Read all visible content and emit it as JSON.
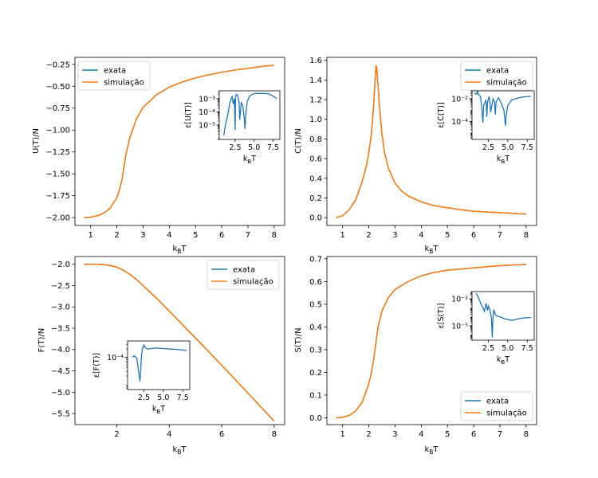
{
  "colors": {
    "exata": "#1f77b4",
    "simulacao": "#ff7f0e"
  },
  "chart_data": [
    {
      "type": "line",
      "id": "U",
      "ylabel": "U(T)/N",
      "xlabel": "k_BT",
      "xlim": [
        0.4,
        8.4
      ],
      "ylim": [
        -2.09,
        -0.17
      ],
      "xticks": [
        1,
        2,
        3,
        4,
        5,
        6,
        7,
        8
      ],
      "yticks": [
        -2.0,
        -1.75,
        -1.5,
        -1.25,
        -1.0,
        -0.75,
        -0.5,
        -0.25
      ],
      "ytick_labels": [
        "−2.00",
        "−1.75",
        "−1.50",
        "−1.25",
        "−1.00",
        "−0.75",
        "−0.50",
        "−0.25"
      ],
      "legend": {
        "position": "upper-left",
        "labels": [
          "exata",
          "simulação"
        ]
      },
      "series": [
        {
          "name": "exata",
          "x": [
            0.75,
            1.0,
            1.25,
            1.5,
            1.75,
            2.0,
            2.1,
            2.2,
            2.27,
            2.35,
            2.5,
            2.75,
            3.0,
            3.5,
            4.0,
            4.5,
            5.0,
            5.5,
            6.0,
            6.5,
            7.0,
            7.5,
            8.0
          ],
          "y": [
            -2.0,
            -1.995,
            -1.98,
            -1.95,
            -1.89,
            -1.77,
            -1.68,
            -1.56,
            -1.42,
            -1.27,
            -1.08,
            -0.87,
            -0.74,
            -0.6,
            -0.51,
            -0.45,
            -0.405,
            -0.37,
            -0.34,
            -0.315,
            -0.295,
            -0.275,
            -0.26
          ]
        },
        {
          "name": "simulação",
          "x": [
            0.75,
            1.0,
            1.25,
            1.5,
            1.75,
            2.0,
            2.1,
            2.2,
            2.27,
            2.35,
            2.5,
            2.75,
            3.0,
            3.5,
            4.0,
            4.5,
            5.0,
            5.5,
            6.0,
            6.5,
            7.0,
            7.5,
            8.0
          ],
          "y": [
            -2.0,
            -1.995,
            -1.98,
            -1.95,
            -1.89,
            -1.77,
            -1.68,
            -1.56,
            -1.42,
            -1.27,
            -1.08,
            -0.87,
            -0.74,
            -0.6,
            -0.51,
            -0.45,
            -0.405,
            -0.37,
            -0.34,
            -0.315,
            -0.295,
            -0.275,
            -0.26
          ]
        }
      ],
      "inset": {
        "ylabel": "ε[U(T)]",
        "xlabel": "k_BT",
        "xlim": [
          0.4,
          8.4
        ],
        "ylog": [
          -6.1,
          -2.4
        ],
        "xticks": [
          2.5,
          5.0,
          7.5
        ],
        "xtick_labels": [
          "2.5",
          "5.0",
          "7.5"
        ],
        "yticks": [
          -5,
          -4,
          -3
        ],
        "ytick_labels": [
          "10⁻⁵",
          "10⁻⁴",
          "10⁻³"
        ],
        "series": [
          {
            "name": "exata",
            "x": [
              1.0,
              1.2,
              1.5,
              1.8,
              2.1,
              2.25,
              2.4,
              2.5,
              2.55,
              2.6,
              2.8,
              3.0,
              3.1,
              3.3,
              3.5,
              3.7,
              3.8,
              3.9,
              4.1,
              4.4,
              4.8,
              5.3,
              6.0,
              6.5,
              7.0,
              7.5,
              8.0
            ],
            "log10": [
              -5.8,
              -5.0,
              -4.3,
              -3.3,
              -2.8,
              -3.4,
              -3.0,
              -5.4,
              -2.9,
              -2.7,
              -2.7,
              -3.2,
              -4.6,
              -3.3,
              -3.5,
              -4.5,
              -5.3,
              -4.2,
              -3.2,
              -2.8,
              -2.65,
              -2.6,
              -2.6,
              -2.6,
              -2.65,
              -2.8,
              -3.0
            ]
          }
        ]
      }
    },
    {
      "type": "line",
      "id": "C",
      "ylabel": "C(T)/N",
      "xlabel": "k_BT",
      "xlim": [
        0.4,
        8.4
      ],
      "ylim": [
        -0.08,
        1.63
      ],
      "xticks": [
        1,
        2,
        3,
        4,
        5,
        6,
        7,
        8
      ],
      "yticks": [
        0.0,
        0.2,
        0.4,
        0.6,
        0.8,
        1.0,
        1.2,
        1.4,
        1.6
      ],
      "ytick_labels": [
        "0.0",
        "0.2",
        "0.4",
        "0.6",
        "0.8",
        "1.0",
        "1.2",
        "1.4",
        "1.6"
      ],
      "legend": {
        "position": "upper-right",
        "labels": [
          "exata",
          "simulação"
        ]
      },
      "series": [
        {
          "name": "exata",
          "x": [
            0.75,
            1.0,
            1.25,
            1.5,
            1.75,
            1.9,
            2.0,
            2.1,
            2.15,
            2.2,
            2.25,
            2.27,
            2.3,
            2.35,
            2.4,
            2.5,
            2.6,
            2.75,
            3.0,
            3.25,
            3.5,
            4.0,
            4.5,
            5.0,
            5.5,
            6.0,
            7.0,
            8.0
          ],
          "y": [
            0.0,
            0.02,
            0.08,
            0.18,
            0.37,
            0.52,
            0.66,
            0.86,
            1.02,
            1.22,
            1.45,
            1.55,
            1.52,
            1.35,
            1.15,
            0.85,
            0.66,
            0.5,
            0.35,
            0.27,
            0.22,
            0.16,
            0.12,
            0.1,
            0.08,
            0.065,
            0.05,
            0.035
          ]
        },
        {
          "name": "simulação",
          "x": [
            0.75,
            1.0,
            1.25,
            1.5,
            1.75,
            1.9,
            2.0,
            2.1,
            2.15,
            2.2,
            2.25,
            2.27,
            2.3,
            2.35,
            2.4,
            2.5,
            2.6,
            2.75,
            3.0,
            3.25,
            3.5,
            4.0,
            4.5,
            5.0,
            5.5,
            6.0,
            7.0,
            8.0
          ],
          "y": [
            0.0,
            0.02,
            0.08,
            0.18,
            0.37,
            0.52,
            0.66,
            0.86,
            1.02,
            1.22,
            1.45,
            1.55,
            1.52,
            1.35,
            1.15,
            0.85,
            0.66,
            0.5,
            0.35,
            0.27,
            0.22,
            0.16,
            0.12,
            0.1,
            0.08,
            0.065,
            0.05,
            0.035
          ]
        }
      ],
      "inset": {
        "ylabel": "ε[C(T)]",
        "xlabel": "k_BT",
        "xlim": [
          0.4,
          8.4
        ],
        "ylog": [
          -5.6,
          -1.3
        ],
        "xticks": [
          2.5,
          5.0,
          7.5
        ],
        "xtick_labels": [
          "2.5",
          "5.0",
          "7.5"
        ],
        "yticks": [
          -4,
          -2
        ],
        "ytick_labels": [
          "10⁻⁴",
          "10⁻²"
        ],
        "series": [
          {
            "name": "exata",
            "x": [
              0.7,
              1.0,
              1.1,
              1.2,
              1.5,
              1.7,
              1.8,
              1.9,
              2.2,
              2.3,
              2.4,
              2.6,
              2.7,
              2.8,
              3.1,
              3.3,
              3.4,
              3.5,
              3.8,
              4.1,
              4.5,
              4.7,
              4.8,
              5.0,
              5.5,
              6.0,
              6.5,
              7.0,
              7.5,
              8.0
            ],
            "log10": [
              -1.5,
              -1.6,
              -1.3,
              -1.6,
              -1.8,
              -3.2,
              -4.1,
              -2.6,
              -2.1,
              -3.6,
              -2.3,
              -1.8,
              -2.3,
              -3.2,
              -2.0,
              -2.3,
              -3.4,
              -2.3,
              -1.9,
              -2.3,
              -3.0,
              -4.4,
              -3.5,
              -2.6,
              -2.1,
              -2.0,
              -1.9,
              -1.85,
              -1.8,
              -1.8
            ]
          }
        ]
      }
    },
    {
      "type": "line",
      "id": "F",
      "ylabel": "F(T)/N",
      "xlabel": "k_BT",
      "xlim": [
        0.4,
        8.4
      ],
      "ylim": [
        -5.76,
        -1.82
      ],
      "xticks": [
        2,
        4,
        6,
        8
      ],
      "yticks": [
        -5.5,
        -5.0,
        -4.5,
        -4.0,
        -3.5,
        -3.0,
        -2.5,
        -2.0
      ],
      "ytick_labels": [
        "−5.5",
        "−5.0",
        "−4.5",
        "−4.0",
        "−3.5",
        "−3.0",
        "−2.5",
        "−2.0"
      ],
      "legend": {
        "position": "upper-right",
        "labels": [
          "exata",
          "simulação"
        ]
      },
      "series": [
        {
          "name": "exata",
          "x": [
            0.75,
            1.0,
            1.25,
            1.5,
            1.75,
            2.0,
            2.25,
            2.5,
            2.75,
            3.0,
            3.5,
            4.0,
            5.0,
            6.0,
            7.0,
            8.0
          ],
          "y": [
            -2.0,
            -2.0,
            -2.002,
            -2.01,
            -2.03,
            -2.07,
            -2.14,
            -2.24,
            -2.36,
            -2.5,
            -2.79,
            -3.1,
            -3.73,
            -4.37,
            -5.02,
            -5.68
          ]
        },
        {
          "name": "simulação",
          "x": [
            0.75,
            1.0,
            1.25,
            1.5,
            1.75,
            2.0,
            2.25,
            2.5,
            2.75,
            3.0,
            3.5,
            4.0,
            5.0,
            6.0,
            7.0,
            8.0
          ],
          "y": [
            -2.0,
            -2.0,
            -2.002,
            -2.01,
            -2.03,
            -2.07,
            -2.14,
            -2.24,
            -2.36,
            -2.5,
            -2.79,
            -3.1,
            -3.73,
            -4.37,
            -5.02,
            -5.68
          ]
        }
      ],
      "inset": {
        "ylabel": "ε[F(T)]",
        "xlabel": "k_BT",
        "xlim": [
          0.4,
          8.4
        ],
        "ylog": [
          -5.2,
          -3.4
        ],
        "xticks": [
          2.5,
          5.0,
          7.5
        ],
        "xtick_labels": [
          "2.5",
          "5.0",
          "7.5"
        ],
        "yticks": [
          -4
        ],
        "ytick_labels": [
          "10⁻⁴"
        ],
        "series": [
          {
            "name": "exata",
            "x": [
              1.0,
              1.3,
              1.6,
              1.8,
              2.0,
              2.1,
              2.2,
              2.3,
              2.5,
              2.7,
              3.0,
              3.5,
              4.0,
              5.0,
              6.0,
              7.0,
              8.0
            ],
            "log10": [
              -4.0,
              -3.95,
              -4.05,
              -4.5,
              -4.9,
              -4.4,
              -3.9,
              -3.7,
              -3.55,
              -3.65,
              -3.7,
              -3.68,
              -3.66,
              -3.68,
              -3.7,
              -3.72,
              -3.75
            ]
          }
        ]
      }
    },
    {
      "type": "line",
      "id": "S",
      "ylabel": "S(T)/N",
      "xlabel": "k_BT",
      "xlim": [
        0.4,
        8.4
      ],
      "ylim": [
        -0.03,
        0.71
      ],
      "xticks": [
        1,
        2,
        3,
        4,
        5,
        6,
        7,
        8
      ],
      "yticks": [
        0.0,
        0.1,
        0.2,
        0.3,
        0.4,
        0.5,
        0.6,
        0.7
      ],
      "ytick_labels": [
        "0.0",
        "0.1",
        "0.2",
        "0.3",
        "0.4",
        "0.5",
        "0.6",
        "0.7"
      ],
      "legend": {
        "position": "lower-right",
        "labels": [
          "exata",
          "simulação"
        ]
      },
      "series": [
        {
          "name": "exata",
          "x": [
            0.75,
            1.0,
            1.25,
            1.5,
            1.75,
            2.0,
            2.1,
            2.2,
            2.27,
            2.35,
            2.5,
            2.75,
            3.0,
            3.5,
            4.0,
            4.5,
            5.0,
            6.0,
            7.0,
            8.0
          ],
          "y": [
            0.0,
            0.003,
            0.01,
            0.03,
            0.07,
            0.15,
            0.2,
            0.27,
            0.33,
            0.4,
            0.47,
            0.53,
            0.565,
            0.6,
            0.625,
            0.64,
            0.65,
            0.66,
            0.67,
            0.675
          ]
        },
        {
          "name": "simulação",
          "x": [
            0.75,
            1.0,
            1.25,
            1.5,
            1.75,
            2.0,
            2.1,
            2.2,
            2.27,
            2.35,
            2.5,
            2.75,
            3.0,
            3.5,
            4.0,
            4.5,
            5.0,
            6.0,
            7.0,
            8.0
          ],
          "y": [
            0.0,
            0.003,
            0.01,
            0.03,
            0.07,
            0.15,
            0.2,
            0.27,
            0.33,
            0.4,
            0.47,
            0.53,
            0.565,
            0.6,
            0.625,
            0.64,
            0.65,
            0.66,
            0.67,
            0.675
          ]
        }
      ],
      "inset": {
        "ylabel": "ε[S(T)]",
        "xlabel": "k_BT",
        "xlim": [
          0.4,
          8.4
        ],
        "ylog": [
          -6.6,
          -1.2
        ],
        "xticks": [
          2.5,
          5.0,
          7.5
        ],
        "xtick_labels": [
          "2.5",
          "5.0",
          "7.5"
        ],
        "yticks": [
          -5,
          -2
        ],
        "ytick_labels": [
          "10⁻⁵",
          "10⁻²"
        ],
        "series": [
          {
            "name": "exata",
            "x": [
              0.9,
              1.2,
              1.5,
              1.8,
              2.0,
              2.2,
              2.4,
              2.5,
              2.7,
              2.9,
              3.0,
              3.1,
              3.2,
              3.4,
              3.6,
              4.0,
              4.5,
              5.0,
              5.5,
              6.0,
              6.5,
              7.0,
              7.5,
              8.0
            ],
            "log10": [
              -1.4,
              -1.8,
              -2.5,
              -3.0,
              -3.4,
              -2.5,
              -3.3,
              -2.8,
              -3.2,
              -4.2,
              -6.3,
              -4.0,
              -3.2,
              -3.8,
              -3.9,
              -4.0,
              -4.2,
              -4.3,
              -4.4,
              -4.3,
              -4.2,
              -4.15,
              -4.1,
              -4.1
            ]
          }
        ]
      }
    }
  ]
}
